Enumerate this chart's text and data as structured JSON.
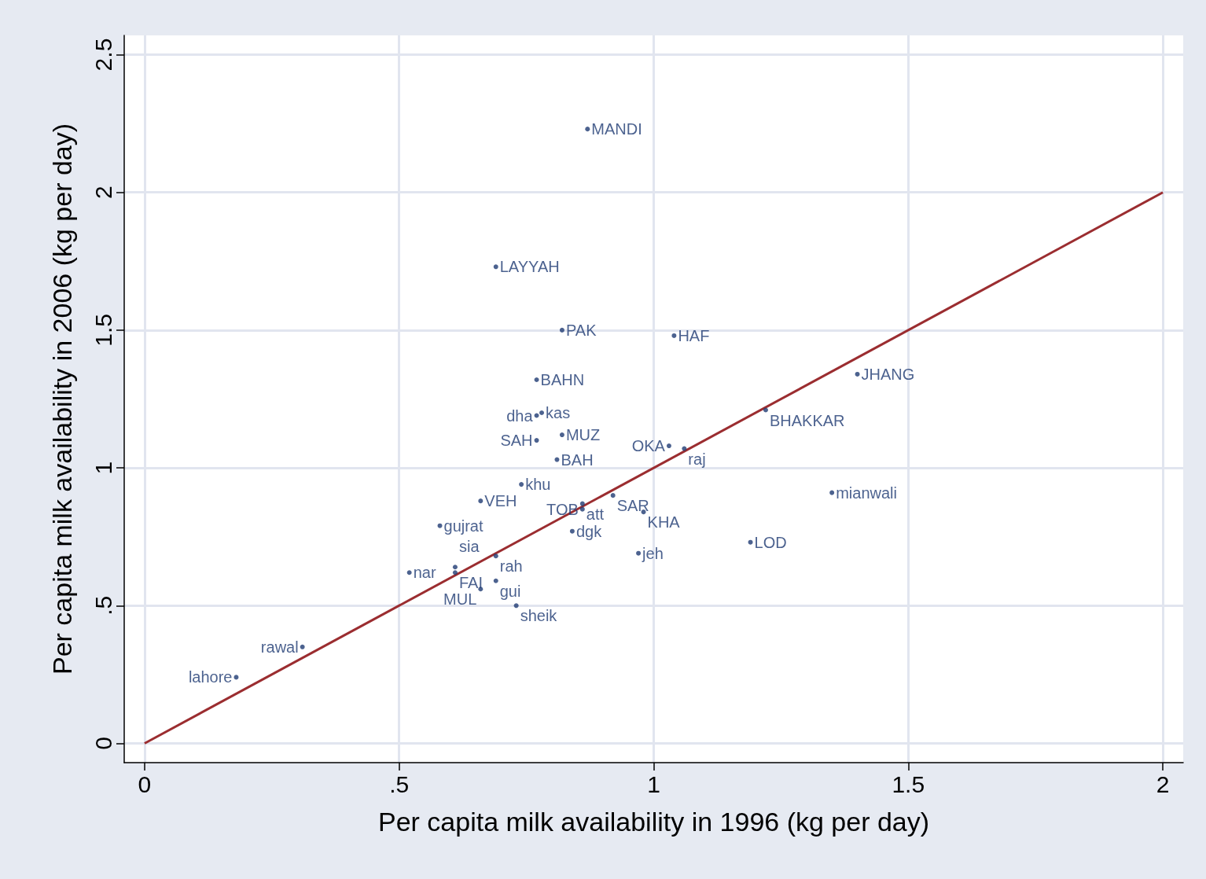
{
  "chart_data": {
    "type": "scatter",
    "xlabel": "Per capita milk availability in 1996 (kg per day)",
    "ylabel": "Per capita milk availability in 2006 (kg per day)",
    "xlim": [
      -0.04,
      2.04
    ],
    "ylim": [
      -0.07,
      2.57
    ],
    "xticks": [
      0,
      {
        "value": 0.5,
        "label": ".5"
      },
      1,
      1.5,
      2
    ],
    "yticks": [
      0,
      {
        "value": 0.5,
        "label": ".5"
      },
      1,
      1.5,
      2,
      2.5
    ],
    "grid": true,
    "marker": "circle",
    "series": [
      {
        "color": "#1f3b73",
        "x": [
          0.87,
          0.69,
          0.82,
          1.04,
          0.77,
          1.4,
          1.22,
          0.78,
          0.77,
          0.77,
          0.82,
          0.81,
          1.03,
          1.06,
          0.74,
          1.35,
          0.66,
          0.92,
          0.86,
          0.86,
          0.98,
          0.58,
          0.84,
          1.19,
          0.69,
          0.97,
          0.52,
          0.61,
          0.61,
          0.69,
          0.66,
          0.73,
          0.31,
          0.18
        ],
        "values": [
          2.23,
          1.73,
          1.5,
          1.48,
          1.32,
          1.34,
          1.21,
          1.2,
          1.19,
          1.1,
          1.12,
          1.03,
          1.08,
          1.07,
          0.94,
          0.91,
          0.88,
          0.9,
          0.87,
          0.85,
          0.84,
          0.79,
          0.77,
          0.73,
          0.68,
          0.69,
          0.62,
          0.64,
          0.62,
          0.59,
          0.56,
          0.5,
          0.35,
          0.24
        ]
      },
      {
        "type": "line",
        "marker": "none",
        "color": "#9b2d30",
        "x": [
          0,
          2
        ],
        "values": [
          0,
          2
        ]
      }
    ],
    "annotations": [
      {
        "text": "MANDI",
        "x": 0.87,
        "y": 2.23
      },
      {
        "text": "LAYYAH",
        "x": 0.69,
        "y": 1.73
      },
      {
        "text": "PAK",
        "x": 0.82,
        "y": 1.5
      },
      {
        "text": "HAF",
        "x": 1.04,
        "y": 1.48
      },
      {
        "text": "BAHN",
        "x": 0.77,
        "y": 1.32
      },
      {
        "text": "JHANG",
        "x": 1.4,
        "y": 1.34
      },
      {
        "text": "BHAKKAR",
        "x": 1.22,
        "y": 1.21
      },
      {
        "text": "kas",
        "x": 0.78,
        "y": 1.2
      },
      {
        "text": "dha",
        "x": 0.77,
        "y": 1.19
      },
      {
        "text": "SAH",
        "x": 0.77,
        "y": 1.1
      },
      {
        "text": "MUZ",
        "x": 0.82,
        "y": 1.12
      },
      {
        "text": "BAH",
        "x": 0.81,
        "y": 1.03
      },
      {
        "text": "OKA",
        "x": 1.03,
        "y": 1.08
      },
      {
        "text": "raj",
        "x": 1.06,
        "y": 1.07
      },
      {
        "text": "khu",
        "x": 0.74,
        "y": 0.94
      },
      {
        "text": "mianwali",
        "x": 1.35,
        "y": 0.91
      },
      {
        "text": "VEH",
        "x": 0.66,
        "y": 0.88
      },
      {
        "text": "SAR",
        "x": 0.92,
        "y": 0.9
      },
      {
        "text": "att",
        "x": 0.86,
        "y": 0.87
      },
      {
        "text": "TOB",
        "x": 0.86,
        "y": 0.85
      },
      {
        "text": "KHA",
        "x": 0.98,
        "y": 0.84
      },
      {
        "text": "gujrat",
        "x": 0.58,
        "y": 0.79
      },
      {
        "text": "dgk",
        "x": 0.84,
        "y": 0.77
      },
      {
        "text": "LOD",
        "x": 1.19,
        "y": 0.73
      },
      {
        "text": "rah",
        "x": 0.69,
        "y": 0.68
      },
      {
        "text": "jeh",
        "x": 0.97,
        "y": 0.69
      },
      {
        "text": "nar",
        "x": 0.52,
        "y": 0.62
      },
      {
        "text": "sia",
        "x": 0.61,
        "y": 0.64
      },
      {
        "text": "FAI",
        "x": 0.61,
        "y": 0.62
      },
      {
        "text": "gui",
        "x": 0.69,
        "y": 0.59
      },
      {
        "text": "MUL",
        "x": 0.66,
        "y": 0.56
      },
      {
        "text": "sheik",
        "x": 0.73,
        "y": 0.5
      },
      {
        "text": "rawal",
        "x": 0.31,
        "y": 0.35
      },
      {
        "text": "lahore",
        "x": 0.18,
        "y": 0.24
      }
    ]
  }
}
